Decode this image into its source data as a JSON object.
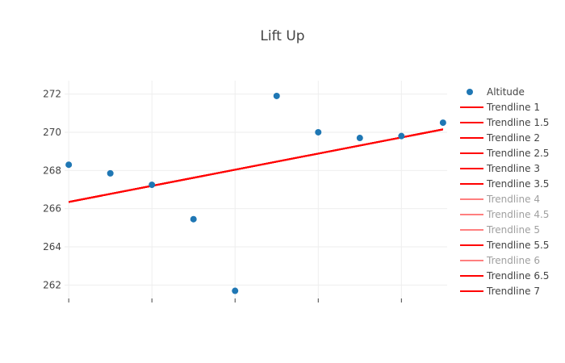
{
  "chart_data": {
    "type": "scatter",
    "title": "Lift Up",
    "xlabel": "",
    "ylabel": "",
    "x_ticks_labeled": false,
    "xlim": [
      -0.1,
      9.1
    ],
    "ylim": [
      261.3,
      272.7
    ],
    "yticks": [
      262,
      264,
      266,
      268,
      270,
      272
    ],
    "grid": true,
    "legend_position": "right",
    "series": [
      {
        "name": "Altitude",
        "mode": "markers",
        "color": "#1f77b4",
        "x": [
          0,
          1,
          2,
          3,
          4,
          5,
          6,
          7,
          8,
          9
        ],
        "y": [
          268.3,
          267.85,
          267.25,
          265.45,
          261.7,
          271.9,
          270.0,
          269.7,
          269.8,
          270.5
        ],
        "visible": true
      },
      {
        "name": "Trendline 1",
        "mode": "line",
        "color": "#ff0000",
        "x": [
          0,
          9
        ],
        "y": [
          266.35,
          270.15
        ],
        "visible": true
      },
      {
        "name": "Trendline 1.5",
        "mode": "line",
        "color": "#ff0000",
        "x": [
          0,
          9
        ],
        "y": [
          266.35,
          270.15
        ],
        "visible": true
      },
      {
        "name": "Trendline 2",
        "mode": "line",
        "color": "#ff0000",
        "x": [
          0,
          9
        ],
        "y": [
          266.35,
          270.15
        ],
        "visible": true
      },
      {
        "name": "Trendline 2.5",
        "mode": "line",
        "color": "#ff0000",
        "x": [
          0,
          9
        ],
        "y": [
          266.35,
          270.15
        ],
        "visible": true
      },
      {
        "name": "Trendline 3",
        "mode": "line",
        "color": "#ff0000",
        "x": [
          0,
          9
        ],
        "y": [
          266.35,
          270.15
        ],
        "visible": true
      },
      {
        "name": "Trendline 3.5",
        "mode": "line",
        "color": "#ff0000",
        "x": [
          0,
          9
        ],
        "y": [
          266.35,
          270.15
        ],
        "visible": true
      },
      {
        "name": "Trendline 4",
        "mode": "line",
        "color": "#ff0000",
        "x": [
          0,
          9
        ],
        "y": [
          266.35,
          270.15
        ],
        "visible": false
      },
      {
        "name": "Trendline 4.5",
        "mode": "line",
        "color": "#ff0000",
        "x": [
          0,
          9
        ],
        "y": [
          266.35,
          270.15
        ],
        "visible": false
      },
      {
        "name": "Trendline 5",
        "mode": "line",
        "color": "#ff0000",
        "x": [
          0,
          9
        ],
        "y": [
          266.35,
          270.15
        ],
        "visible": false
      },
      {
        "name": "Trendline 5.5",
        "mode": "line",
        "color": "#ff0000",
        "x": [
          0,
          9
        ],
        "y": [
          266.35,
          270.15
        ],
        "visible": true
      },
      {
        "name": "Trendline 6",
        "mode": "line",
        "color": "#ff0000",
        "x": [
          0,
          9
        ],
        "y": [
          266.35,
          270.15
        ],
        "visible": false
      },
      {
        "name": "Trendline 6.5",
        "mode": "line",
        "color": "#ff0000",
        "x": [
          0,
          9
        ],
        "y": [
          266.35,
          270.15
        ],
        "visible": true
      },
      {
        "name": "Trendline 7",
        "mode": "line",
        "color": "#ff0000",
        "x": [
          0,
          9
        ],
        "y": [
          266.35,
          270.15
        ],
        "visible": true
      }
    ]
  }
}
